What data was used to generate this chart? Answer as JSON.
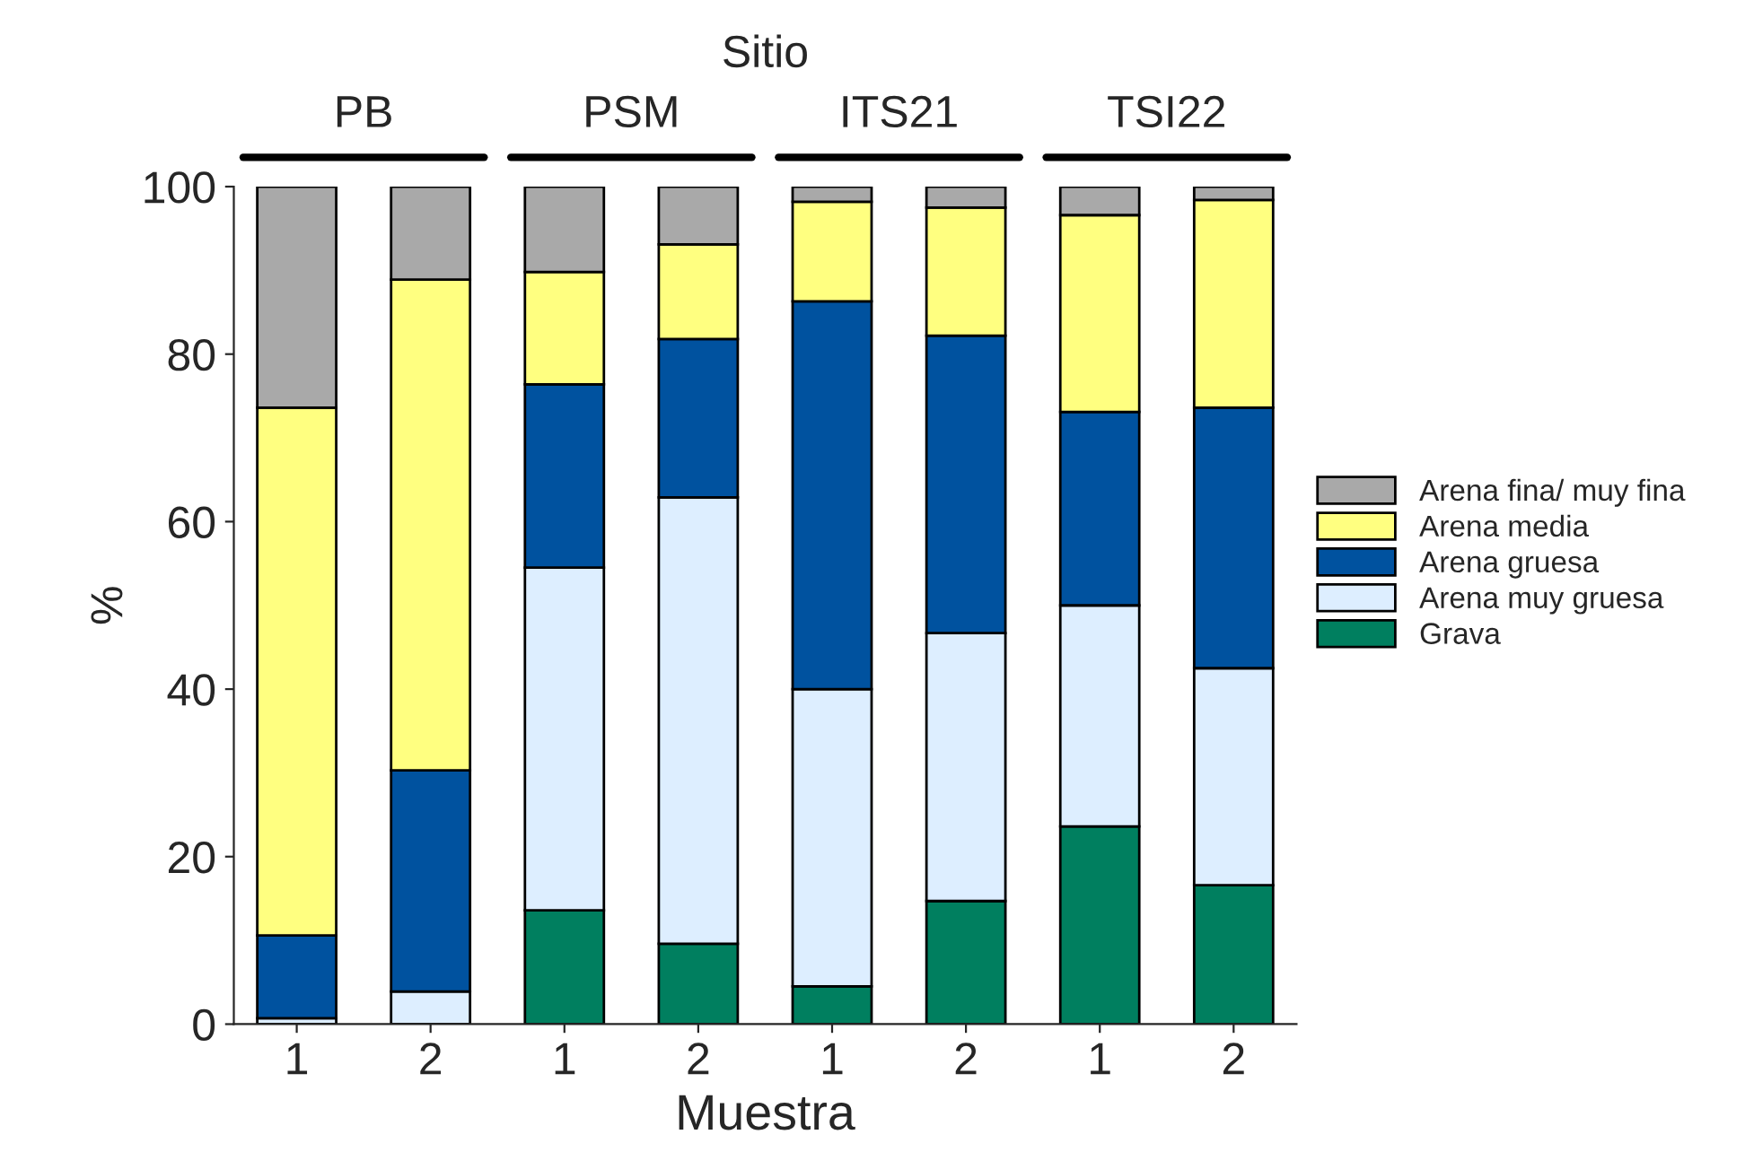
{
  "chart_data": {
    "type": "bar",
    "stacked": true,
    "title": "Sitio",
    "xlabel": "Muestra",
    "ylabel": "%",
    "annotations": [
      "PB",
      "PSM",
      "ITS21",
      "TSI22"
    ],
    "categories": [
      "1",
      "2",
      "1",
      "2",
      "1",
      "2",
      "1",
      "2"
    ],
    "series": [
      {
        "name": "Grava",
        "color": "#007f5f",
        "values": [
          0,
          0,
          13.6,
          9.6,
          4.5,
          14.7,
          23.6,
          16.6
        ]
      },
      {
        "name": "Arena muy gruesa",
        "color": "#ddeeff",
        "values": [
          0.7,
          3.9,
          40.9,
          53.3,
          35.5,
          32.0,
          26.4,
          25.9
        ]
      },
      {
        "name": "Arena gruesa",
        "color": "#00529f",
        "values": [
          9.9,
          26.4,
          21.9,
          18.9,
          46.3,
          35.5,
          23.1,
          31.1
        ]
      },
      {
        "name": "Arena media",
        "color": "#ffff80",
        "values": [
          63.0,
          58.6,
          13.4,
          11.3,
          11.9,
          15.3,
          23.5,
          24.8
        ]
      },
      {
        "name": "Arena fina/ muy fina",
        "color": "#a9a9a9",
        "values": [
          26.4,
          11.1,
          10.2,
          6.9,
          1.8,
          2.5,
          3.4,
          1.6
        ]
      }
    ],
    "ylim": [
      0,
      100
    ],
    "yticks": [
      0,
      20,
      40,
      60,
      80,
      100
    ],
    "grid": false,
    "legend": "right"
  }
}
